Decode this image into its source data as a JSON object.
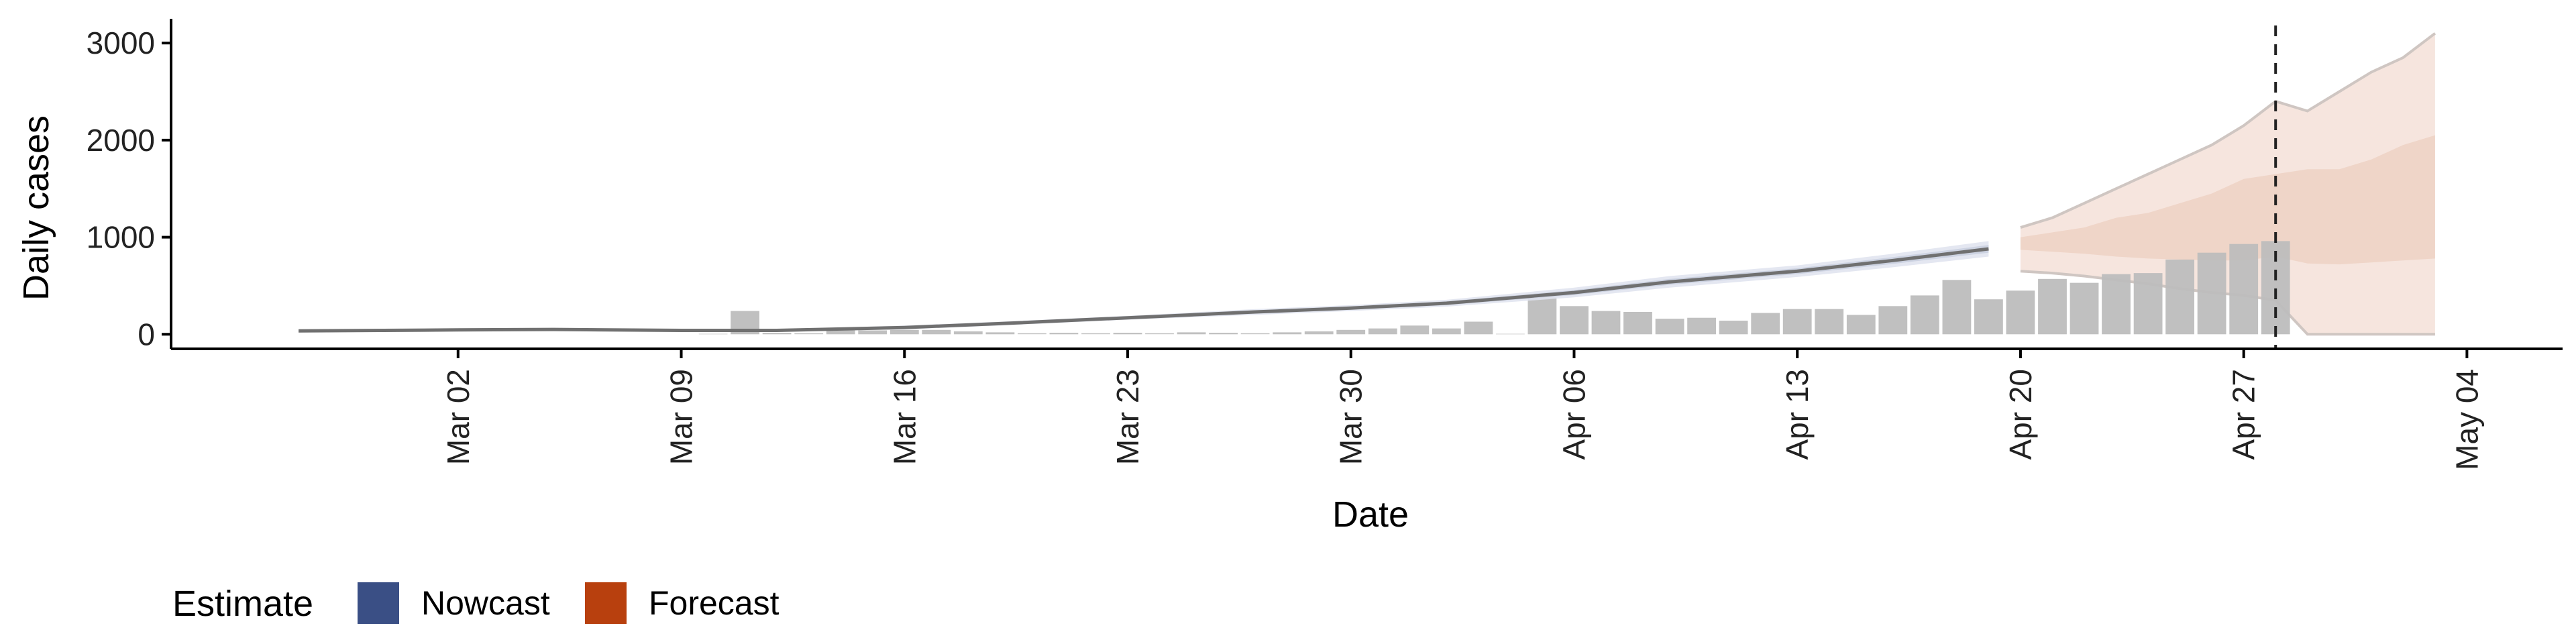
{
  "chart_data": {
    "type": "bar",
    "xlabel": "Date",
    "ylabel": "Daily cases",
    "ylim": [
      -150,
      3250
    ],
    "xlim": [
      "2020-02-22",
      "2020-05-07"
    ],
    "yticks": [
      0,
      1000,
      2000,
      3000
    ],
    "xticks": [
      "2020-03-02",
      "2020-03-09",
      "2020-03-16",
      "2020-03-23",
      "2020-03-30",
      "2020-04-06",
      "2020-04-13",
      "2020-04-20",
      "2020-04-27",
      "2020-05-04"
    ],
    "xtick_labels": [
      "Mar 02",
      "Mar 09",
      "Mar 16",
      "Mar 23",
      "Mar 30",
      "Apr 06",
      "Apr 13",
      "Apr 20",
      "Apr 27",
      "May 04"
    ],
    "dashed_line_date": "2020-04-28",
    "reported_cases": {
      "dates": [
        "2020-03-10",
        "2020-03-11",
        "2020-03-12",
        "2020-03-13",
        "2020-03-14",
        "2020-03-15",
        "2020-03-16",
        "2020-03-17",
        "2020-03-18",
        "2020-03-19",
        "2020-03-20",
        "2020-03-21",
        "2020-03-22",
        "2020-03-23",
        "2020-03-24",
        "2020-03-25",
        "2020-03-26",
        "2020-03-27",
        "2020-03-28",
        "2020-03-29",
        "2020-03-30",
        "2020-03-31",
        "2020-04-01",
        "2020-04-02",
        "2020-04-03",
        "2020-04-04",
        "2020-04-05",
        "2020-04-06",
        "2020-04-07",
        "2020-04-08",
        "2020-04-09",
        "2020-04-10",
        "2020-04-11",
        "2020-04-12",
        "2020-04-13",
        "2020-04-14",
        "2020-04-15",
        "2020-04-16",
        "2020-04-17",
        "2020-04-18",
        "2020-04-19",
        "2020-04-20",
        "2020-04-21",
        "2020-04-22",
        "2020-04-23",
        "2020-04-24",
        "2020-04-25",
        "2020-04-26",
        "2020-04-27",
        "2020-04-28"
      ],
      "values": [
        5,
        240,
        15,
        10,
        50,
        40,
        45,
        45,
        30,
        20,
        10,
        15,
        10,
        15,
        10,
        20,
        15,
        10,
        20,
        30,
        45,
        60,
        90,
        60,
        130,
        5,
        380,
        290,
        240,
        230,
        160,
        170,
        140,
        220,
        260,
        260,
        200,
        290,
        400,
        560,
        360,
        450,
        570,
        530,
        620,
        630,
        770,
        840,
        930,
        960
      ]
    },
    "series": [
      {
        "name": "Nowcast",
        "dates": [
          "2020-02-26",
          "2020-03-02",
          "2020-03-05",
          "2020-03-09",
          "2020-03-12",
          "2020-03-16",
          "2020-03-19",
          "2020-03-23",
          "2020-03-27",
          "2020-03-30",
          "2020-04-02",
          "2020-04-06",
          "2020-04-09",
          "2020-04-13",
          "2020-04-16",
          "2020-04-19"
        ],
        "median": [
          35,
          45,
          50,
          40,
          40,
          70,
          110,
          170,
          230,
          270,
          320,
          430,
          540,
          650,
          760,
          880
        ],
        "lower_50": [
          30,
          40,
          45,
          35,
          35,
          60,
          100,
          160,
          215,
          255,
          300,
          405,
          510,
          620,
          725,
          840
        ],
        "upper_50": [
          40,
          50,
          55,
          45,
          45,
          80,
          120,
          180,
          245,
          285,
          340,
          455,
          570,
          680,
          795,
          920
        ],
        "lower_90": [
          25,
          35,
          40,
          30,
          30,
          50,
          90,
          150,
          200,
          240,
          285,
          380,
          480,
          590,
          690,
          800
        ],
        "upper_90": [
          45,
          55,
          60,
          50,
          50,
          90,
          130,
          190,
          260,
          300,
          355,
          480,
          600,
          710,
          830,
          960
        ]
      },
      {
        "name": "Forecast",
        "dates": [
          "2020-04-20",
          "2020-04-21",
          "2020-04-22",
          "2020-04-23",
          "2020-04-24",
          "2020-04-25",
          "2020-04-26",
          "2020-04-27",
          "2020-04-28",
          "2020-04-29",
          "2020-04-30",
          "2020-05-01",
          "2020-05-02",
          "2020-05-03"
        ],
        "lower_50": [
          870,
          850,
          830,
          800,
          780,
          770,
          760,
          760,
          800,
          730,
          720,
          740,
          760,
          780
        ],
        "upper_50": [
          1000,
          1050,
          1100,
          1200,
          1250,
          1350,
          1450,
          1600,
          1650,
          1700,
          1700,
          1800,
          1950,
          2050
        ],
        "lower_90": [
          650,
          630,
          600,
          560,
          520,
          470,
          430,
          400,
          350,
          0,
          0,
          0,
          0,
          0
        ],
        "upper_90": [
          1100,
          1200,
          1350,
          1500,
          1650,
          1800,
          1950,
          2150,
          2400,
          2300,
          2500,
          2700,
          2850,
          3100
        ]
      }
    ],
    "legend": {
      "title": "Estimate",
      "position": "bottom-left",
      "items": [
        {
          "label": "Nowcast",
          "color": "#3a4f85"
        },
        {
          "label": "Forecast",
          "color": "#b8400e"
        }
      ]
    },
    "colors": {
      "bars": "#bdbdbd",
      "nowcast_band_outer": "#dfe3ee",
      "nowcast_band_inner": "#c9cfdf",
      "nowcast_line": "#707070",
      "forecast_band_outer": "#f6e5de",
      "forecast_band_inner": "#efd5c8",
      "forecast_edge": "#cfc6c2",
      "axis": "#000000"
    }
  }
}
